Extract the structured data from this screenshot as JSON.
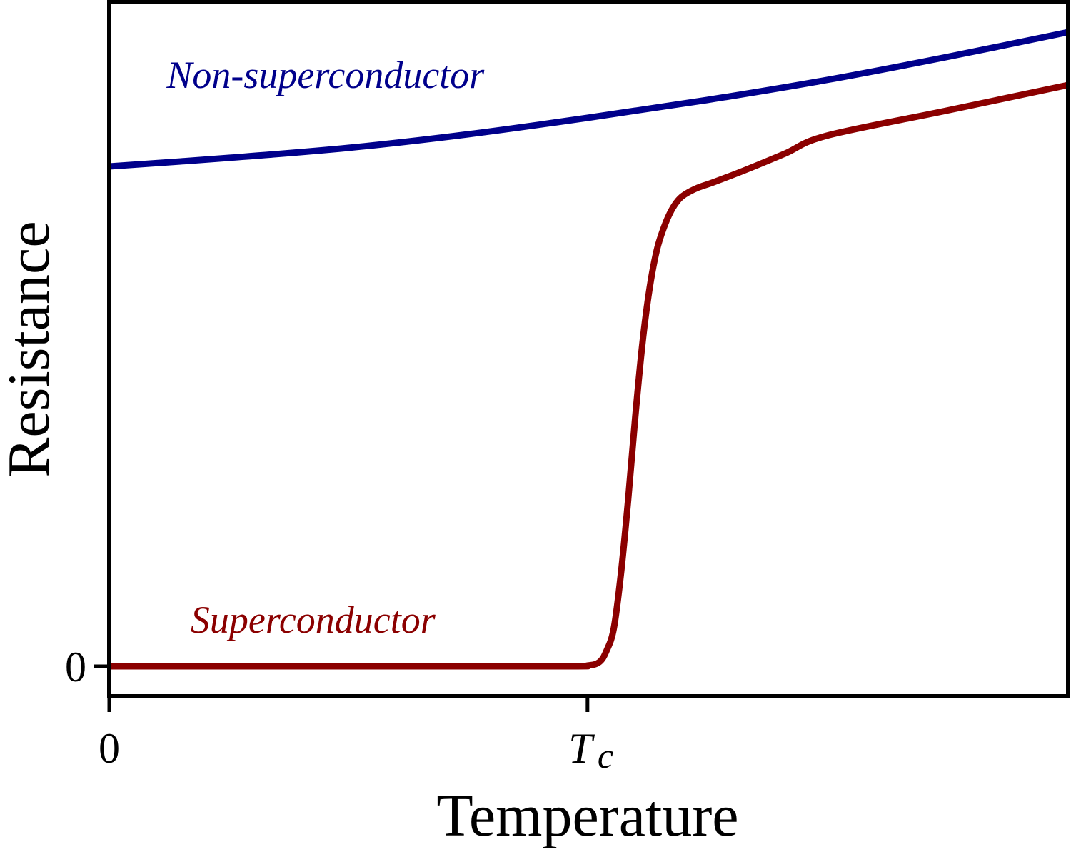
{
  "chart_data": {
    "type": "line",
    "title": "",
    "xlabel": "Temperature",
    "ylabel": "Resistance",
    "xlim": [
      0,
      2.005
    ],
    "ylim": [
      -0.42,
      9.3
    ],
    "x_ticks": [
      {
        "value": 0,
        "label": "0"
      },
      {
        "value": 1,
        "label": "T",
        "sub": "c"
      }
    ],
    "y_ticks": [
      {
        "value": 0,
        "label": "0"
      }
    ],
    "grid": false,
    "series": [
      {
        "name": "Non-superconductor",
        "color": "#00008b",
        "label_pos": [
          0.12,
          8.1
        ],
        "x": [
          0,
          0.25,
          0.5,
          0.75,
          1.0,
          1.25,
          1.5,
          1.75,
          2.005
        ],
        "y": [
          7.0,
          7.12,
          7.26,
          7.45,
          7.68,
          7.93,
          8.21,
          8.53,
          8.88
        ]
      },
      {
        "name": "Superconductor",
        "color": "#8b0000",
        "label_pos": [
          0.17,
          0.47
        ],
        "x": [
          0,
          0.5,
          0.95,
          1.0,
          1.025,
          1.04,
          1.055,
          1.07,
          1.085,
          1.1,
          1.115,
          1.13,
          1.145,
          1.16,
          1.175,
          1.19,
          1.204,
          1.23,
          1.264,
          1.33,
          1.413,
          1.5,
          1.75,
          2.005
        ],
        "y": [
          0,
          0,
          0.0,
          0.01,
          0.06,
          0.22,
          0.53,
          1.3,
          2.33,
          3.5,
          4.53,
          5.3,
          5.83,
          6.15,
          6.38,
          6.53,
          6.61,
          6.7,
          6.78,
          6.95,
          7.18,
          7.43,
          7.78,
          8.14
        ]
      }
    ]
  }
}
